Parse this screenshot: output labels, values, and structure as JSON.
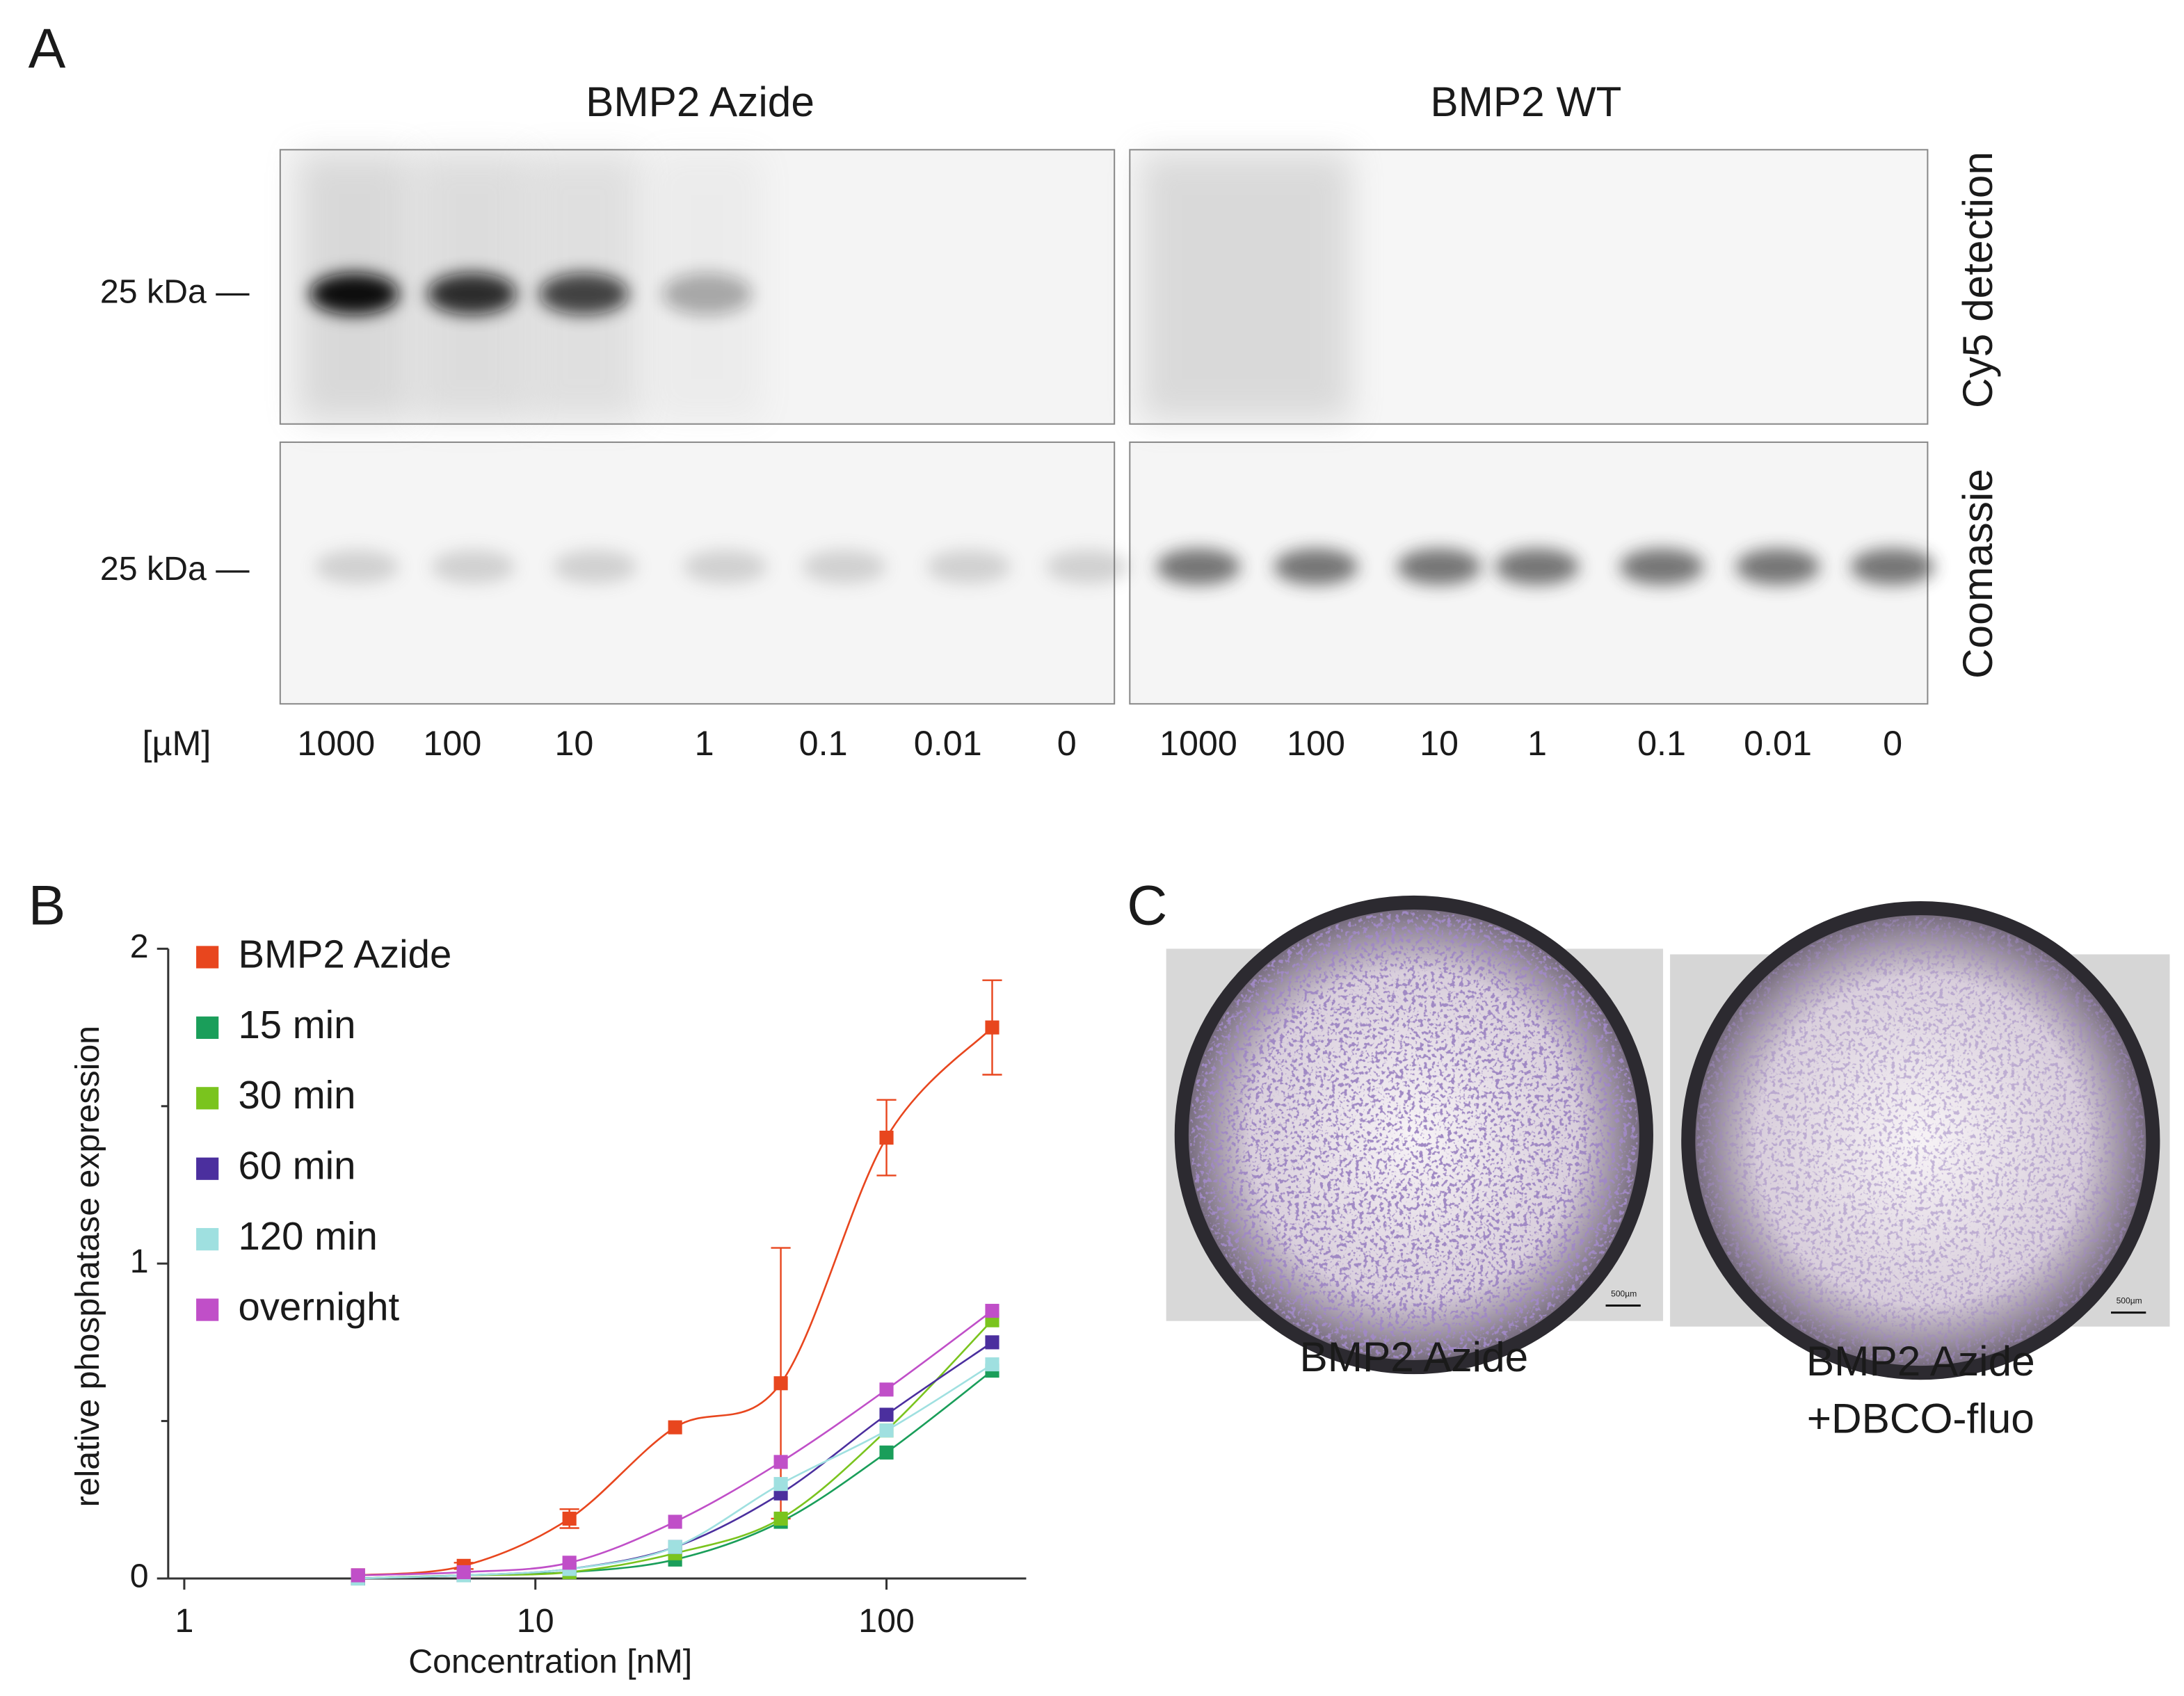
{
  "panel_a": {
    "label": "A",
    "groups": [
      {
        "title": "BMP2 Azide",
        "lanes": [
          "1000",
          "100",
          "10",
          "1",
          "0.1",
          "0.01",
          "0"
        ]
      },
      {
        "title": "BMP2 WT",
        "lanes": [
          "1000",
          "100",
          "10",
          "1",
          "0.1",
          "0.01",
          "0"
        ]
      }
    ],
    "marker_labels": [
      "25 kDa —",
      "25 kDa —"
    ],
    "stain_labels": [
      "Cy5 detection",
      "Coomassie"
    ],
    "unit": "[µM]"
  },
  "chart_data": {
    "type": "scatter",
    "panel_label": "B",
    "x_label": "Concentration [nM]",
    "y_label": "relative phosphatase expression",
    "x_scale": "log",
    "xlim": [
      0.9,
      250
    ],
    "xticks": [
      1,
      10,
      100
    ],
    "ylim": [
      0,
      2
    ],
    "yticks": [
      0,
      1,
      2
    ],
    "yminorticks": [
      0.5,
      1.5
    ],
    "legend": "upper left",
    "x": [
      3.125,
      6.25,
      12.5,
      25,
      50,
      100,
      200
    ],
    "series": [
      {
        "name": "BMP2 Azide",
        "color": "#e8461e",
        "values": [
          0.01,
          0.04,
          0.19,
          0.48,
          0.62,
          1.4,
          1.75
        ],
        "errors": [
          0,
          0.01,
          0.03,
          0,
          0.43,
          0.12,
          0.15
        ]
      },
      {
        "name": "15 min",
        "color": "#1a9e5a",
        "values": [
          0.0,
          0.01,
          0.02,
          0.06,
          0.18,
          0.4,
          0.66
        ]
      },
      {
        "name": "30 min",
        "color": "#7ac41e",
        "values": [
          0.0,
          0.01,
          0.02,
          0.08,
          0.19,
          0.47,
          0.82
        ]
      },
      {
        "name": "60 min",
        "color": "#4b2f9e",
        "values": [
          0.0,
          0.01,
          0.03,
          0.1,
          0.27,
          0.52,
          0.75
        ]
      },
      {
        "name": "120 min",
        "color": "#9fe0e0",
        "values": [
          0.0,
          0.01,
          0.03,
          0.1,
          0.3,
          0.47,
          0.68
        ]
      },
      {
        "name": "overnight",
        "color": "#c04fc8",
        "values": [
          0.01,
          0.02,
          0.05,
          0.18,
          0.37,
          0.6,
          0.85
        ]
      }
    ]
  },
  "panel_c": {
    "label": "C",
    "images": [
      {
        "caption": [
          "BMP2 Azide"
        ],
        "scale_bar": "500µm"
      },
      {
        "caption": [
          "BMP2 Azide",
          "+DBCO-fluo"
        ],
        "scale_bar": "500µm"
      }
    ]
  }
}
